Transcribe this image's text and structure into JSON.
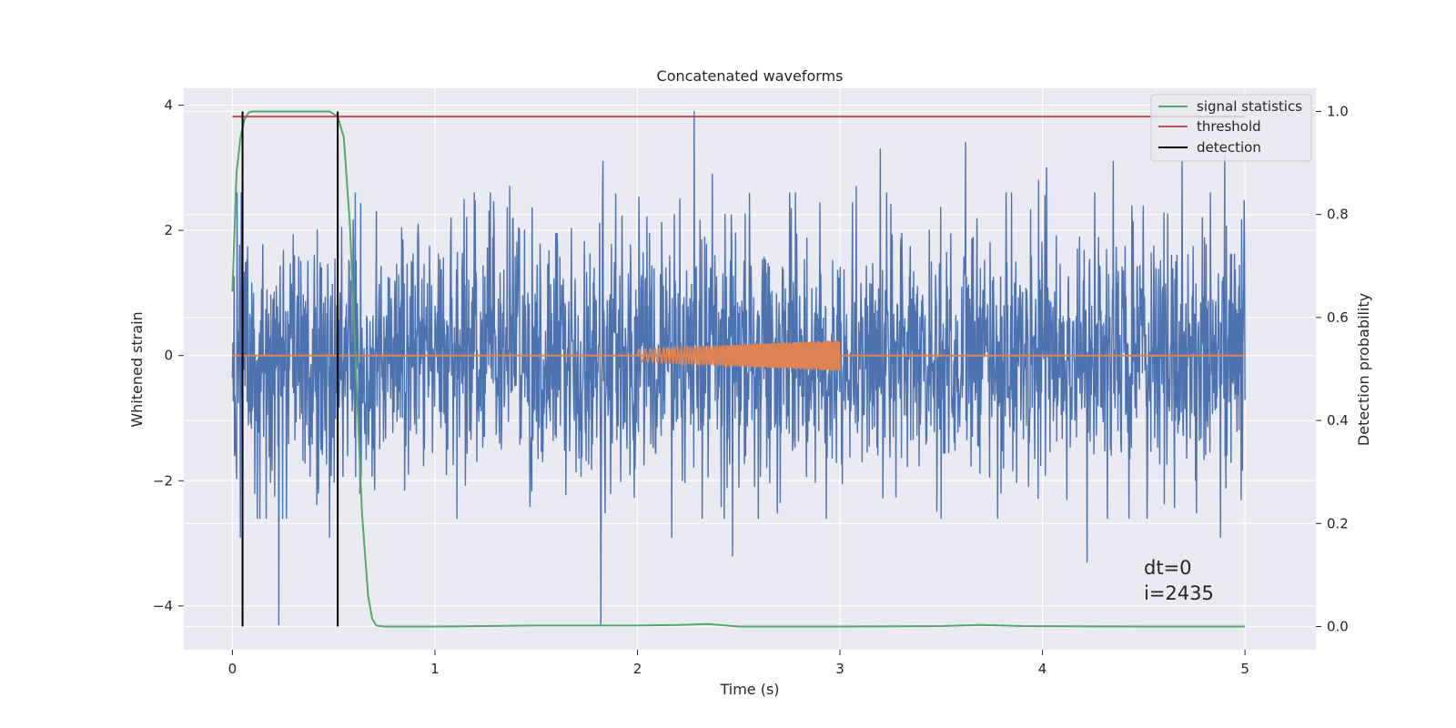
{
  "chart_data": {
    "type": "line",
    "title": "Concatenated waveforms",
    "xlabel": "Time (s)",
    "ylabel": "Whitened strain",
    "ylabel_right": "Detection probability",
    "xlim": [
      -0.24,
      5.35
    ],
    "ylim": [
      -4.7,
      4.27
    ],
    "ylim_right": [
      -0.045,
      1.045
    ],
    "xticks": [
      0,
      1,
      2,
      3,
      4,
      5
    ],
    "yticks": [
      -4,
      -2,
      0,
      2,
      4
    ],
    "yticks_right": [
      0.0,
      0.2,
      0.4,
      0.6,
      0.8,
      1.0
    ],
    "xtick_labels": [
      "0",
      "1",
      "2",
      "3",
      "4",
      "5"
    ],
    "ytick_labels": [
      "−4",
      "−2",
      "0",
      "2",
      "4"
    ],
    "ytick_labels_right": [
      "0.0",
      "0.2",
      "0.4",
      "0.6",
      "0.8",
      "1.0"
    ],
    "grid": true,
    "legend_position": "top-right",
    "legend": [
      {
        "label": "signal statistics",
        "color": "#55a868"
      },
      {
        "label": "threshold",
        "color": "#c44e52"
      },
      {
        "label": "detection",
        "color": "#000000"
      }
    ],
    "noise": {
      "axis": "left",
      "color": "#4c72b0",
      "x_range": [
        0,
        5
      ],
      "typical_amplitude": 1.0,
      "spikes": [
        {
          "x": 0.23,
          "y": -4.3
        },
        {
          "x": 0.04,
          "y": -2.9
        },
        {
          "x": 0.11,
          "y": -2.2
        },
        {
          "x": 0.48,
          "y": -2.9
        },
        {
          "x": 0.63,
          "y": -2.2
        },
        {
          "x": 0.71,
          "y": 2.3
        },
        {
          "x": 1.82,
          "y": -4.3
        },
        {
          "x": 1.83,
          "y": 3.1
        },
        {
          "x": 1.37,
          "y": 2.7
        },
        {
          "x": 2.28,
          "y": 3.9
        },
        {
          "x": 2.21,
          "y": 2.5
        },
        {
          "x": 2.37,
          "y": 2.9
        },
        {
          "x": 2.17,
          "y": -2.9
        },
        {
          "x": 2.47,
          "y": -3.2
        },
        {
          "x": 3.2,
          "y": 3.3
        },
        {
          "x": 3.08,
          "y": 2.7
        },
        {
          "x": 3.5,
          "y": -2.6
        },
        {
          "x": 3.62,
          "y": 3.4
        },
        {
          "x": 3.82,
          "y": 2.6
        },
        {
          "x": 3.98,
          "y": 2.8
        },
        {
          "x": 4.02,
          "y": 3.0
        },
        {
          "x": 4.22,
          "y": -3.3
        },
        {
          "x": 4.35,
          "y": 3.1
        },
        {
          "x": 4.69,
          "y": 3.1
        },
        {
          "x": 4.9,
          "y": 3.2
        },
        {
          "x": 4.88,
          "y": -2.9
        }
      ]
    },
    "signal": {
      "axis": "left",
      "color": "#dd8452",
      "baseline_x": [
        0,
        5
      ],
      "chirp_x": [
        2.0,
        3.0
      ],
      "chirp_amplitude": [
        0.1,
        0.25
      ]
    },
    "series": [
      {
        "name": "signal statistics",
        "axis": "right",
        "color": "#55a868",
        "x": [
          0,
          0.02,
          0.04,
          0.06,
          0.08,
          0.1,
          0.2,
          0.3,
          0.4,
          0.48,
          0.52,
          0.55,
          0.58,
          0.61,
          0.64,
          0.67,
          0.69,
          0.71,
          0.75,
          1.0,
          1.5,
          2.0,
          2.2,
          2.35,
          2.5,
          3.0,
          3.5,
          3.7,
          3.9,
          4.5,
          5.0
        ],
        "y": [
          0.65,
          0.88,
          0.95,
          0.985,
          0.998,
          1.0,
          1.0,
          1.0,
          1.0,
          1.0,
          0.99,
          0.95,
          0.78,
          0.5,
          0.22,
          0.06,
          0.015,
          0.002,
          0.0,
          0.0,
          0.002,
          0.002,
          0.003,
          0.005,
          0.0,
          0.0,
          0.001,
          0.003,
          0.001,
          0.0,
          0.0
        ]
      },
      {
        "name": "threshold",
        "axis": "right",
        "color": "#c44e52",
        "x": [
          0,
          5
        ],
        "y": [
          0.99,
          0.99
        ]
      }
    ],
    "detections": [
      0.05,
      0.52
    ],
    "annotations": [
      "dt=0",
      "i=2435"
    ]
  }
}
